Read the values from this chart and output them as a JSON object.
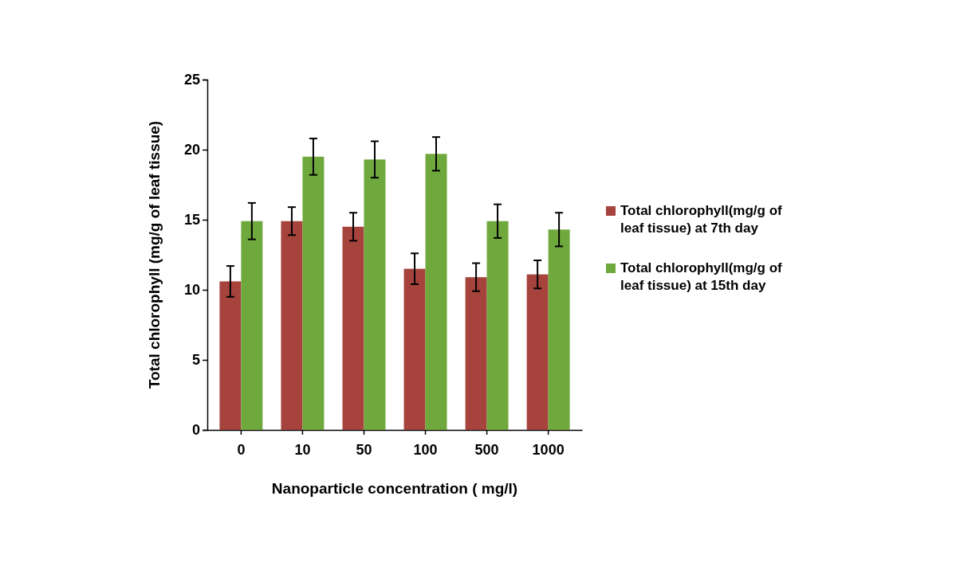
{
  "chart_data": {
    "type": "bar",
    "xlabel": "Nanoparticle concentration ( mg/l)",
    "ylabel": "Total chlorophyll (mg/g of leaf tissue)",
    "categories": [
      "0",
      "10",
      "50",
      "100",
      "500",
      "1000"
    ],
    "series": [
      {
        "name": "Total chlorophyll(mg/g of leaf tissue) at 7th day",
        "color": "#a5433c",
        "values": [
          10.6,
          14.9,
          14.5,
          11.5,
          10.9,
          11.1
        ],
        "errors": [
          1.1,
          1.0,
          1.0,
          1.1,
          1.0,
          1.0
        ]
      },
      {
        "name": "Total chlorophyll(mg/g of leaf tissue) at 15th day",
        "color": "#6fa83c",
        "values": [
          14.9,
          19.5,
          19.3,
          19.7,
          14.9,
          14.3
        ],
        "errors": [
          1.3,
          1.3,
          1.3,
          1.2,
          1.2,
          1.2
        ]
      }
    ],
    "ylim": [
      0,
      25
    ],
    "yticks": [
      0,
      5,
      10,
      15,
      20,
      25
    ],
    "grid": false,
    "legend": "right"
  }
}
